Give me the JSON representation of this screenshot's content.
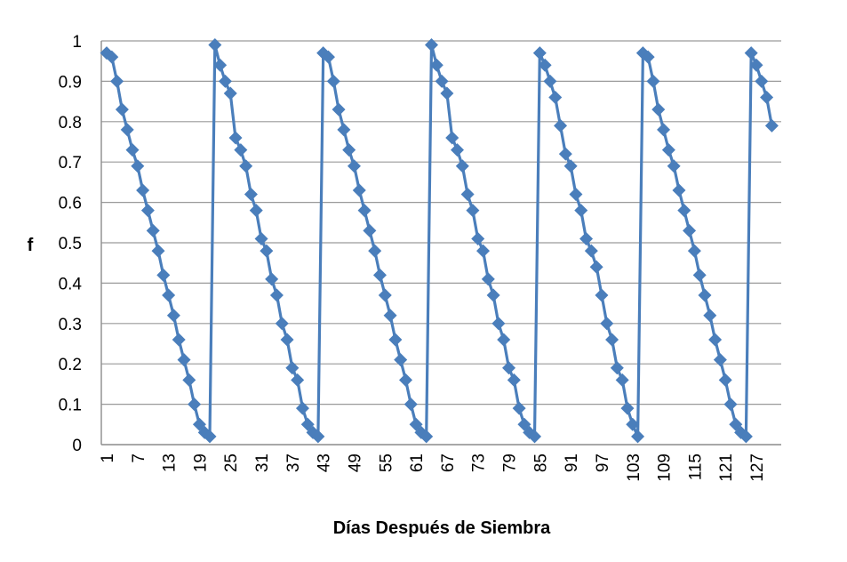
{
  "chart_data": {
    "type": "line",
    "title": "",
    "xlabel": "Días Después de Siembra",
    "ylabel": "f",
    "ylim": [
      0,
      1
    ],
    "xlim": [
      1,
      130
    ],
    "yticks": [
      "0",
      "0.1",
      "0.2",
      "0.3",
      "0.4",
      "0.5",
      "0.6",
      "0.7",
      "0.8",
      "0.9",
      "1"
    ],
    "xticks": [
      "1",
      "7",
      "13",
      "19",
      "25",
      "31",
      "37",
      "43",
      "49",
      "55",
      "61",
      "67",
      "73",
      "79",
      "85",
      "91",
      "97",
      "103",
      "109",
      "115",
      "121",
      "127"
    ],
    "grid": true,
    "legend": "none",
    "series": [
      {
        "color": "#4a7ebb",
        "marker": "diamond",
        "x": [
          1,
          2,
          3,
          4,
          5,
          6,
          7,
          8,
          9,
          10,
          11,
          12,
          13,
          14,
          15,
          16,
          17,
          18,
          19,
          20,
          21,
          22,
          23,
          24,
          25,
          26,
          27,
          28,
          29,
          30,
          31,
          32,
          33,
          34,
          35,
          36,
          37,
          38,
          39,
          40,
          41,
          42,
          43,
          44,
          45,
          46,
          47,
          48,
          49,
          50,
          51,
          52,
          53,
          54,
          55,
          56,
          57,
          58,
          59,
          60,
          61,
          62,
          63,
          64,
          65,
          66,
          67,
          68,
          69,
          70,
          71,
          72,
          73,
          74,
          75,
          76,
          77,
          78,
          79,
          80,
          81,
          82,
          83,
          84,
          85,
          86,
          87,
          88,
          89,
          90,
          91,
          92,
          93,
          94,
          95,
          96,
          97,
          98,
          99,
          100,
          101,
          102,
          103,
          104,
          105,
          106,
          107,
          108,
          109,
          110,
          111,
          112,
          113,
          114,
          115,
          116,
          117,
          118,
          119,
          120,
          121,
          122,
          123,
          124,
          125,
          126,
          127,
          128,
          129,
          130
        ],
        "values": [
          0.97,
          0.96,
          0.9,
          0.83,
          0.78,
          0.73,
          0.69,
          0.63,
          0.58,
          0.53,
          0.48,
          0.42,
          0.37,
          0.32,
          0.26,
          0.21,
          0.16,
          0.1,
          0.05,
          0.03,
          0.02,
          0.99,
          0.94,
          0.9,
          0.87,
          0.76,
          0.73,
          0.69,
          0.62,
          0.58,
          0.51,
          0.48,
          0.41,
          0.37,
          0.3,
          0.26,
          0.19,
          0.16,
          0.09,
          0.05,
          0.03,
          0.02,
          0.97,
          0.96,
          0.9,
          0.83,
          0.78,
          0.73,
          0.69,
          0.63,
          0.58,
          0.53,
          0.48,
          0.42,
          0.37,
          0.32,
          0.26,
          0.21,
          0.16,
          0.1,
          0.05,
          0.03,
          0.02,
          0.99,
          0.94,
          0.9,
          0.87,
          0.76,
          0.73,
          0.69,
          0.62,
          0.58,
          0.51,
          0.48,
          0.41,
          0.37,
          0.3,
          0.26,
          0.19,
          0.16,
          0.09,
          0.05,
          0.03,
          0.02,
          0.97,
          0.94,
          0.9,
          0.86,
          0.79,
          0.72,
          0.69,
          0.62,
          0.58,
          0.51,
          0.48,
          0.44,
          0.37,
          0.3,
          0.26,
          0.19,
          0.16,
          0.09,
          0.05,
          0.02,
          0.97,
          0.96,
          0.9,
          0.83,
          0.78,
          0.73,
          0.69,
          0.63,
          0.58,
          0.53,
          0.48,
          0.42,
          0.37,
          0.32,
          0.26,
          0.21,
          0.16,
          0.1,
          0.05,
          0.03,
          0.02,
          0.97,
          0.94,
          0.9,
          0.86,
          0.79
        ]
      }
    ]
  }
}
